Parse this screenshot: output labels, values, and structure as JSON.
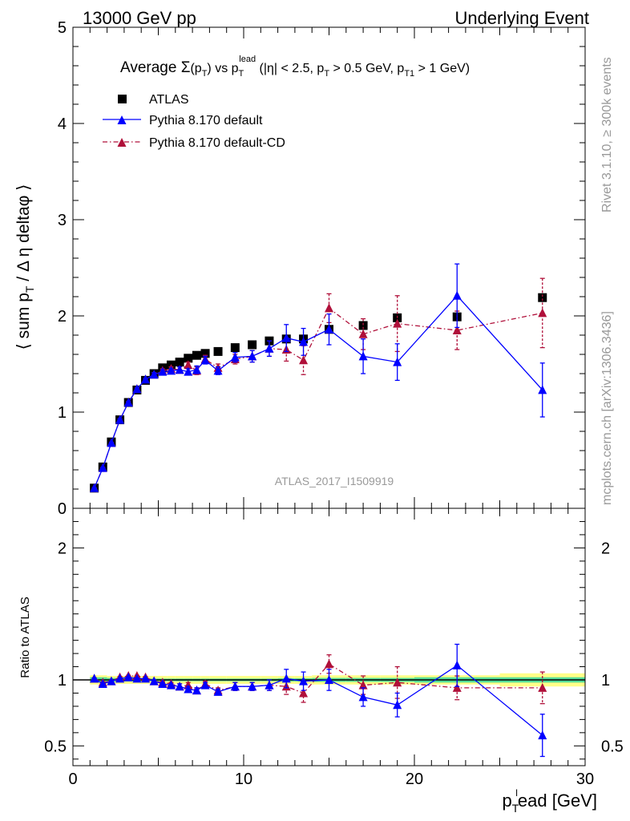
{
  "header": {
    "left": "13000 GeV pp",
    "right": "Underlying Event"
  },
  "side": {
    "rivet": "Rivet 3.1.10, ≥ 300k events",
    "mcplots": "mcplots.cern.ch [arXiv:1306.3436]"
  },
  "chart_data": [
    {
      "type": "scatter",
      "title": "Average Σ(pT) vs pT^lead (|η| < 2.5, pT > 0.5 GeV, pT1 > 1 GeV)",
      "title_parts": {
        "avg": "Average ",
        "sigma": "Σ",
        "p1": "(p",
        "t1": "T",
        "p2": ") vs p",
        "t2": "T",
        "lead": "lead",
        "p3": " (|η| < 2.5, p",
        "t3": "T",
        "p4": " > 0.5 GeV, p",
        "t4": "T1",
        "p5": " > 1 GeV)"
      },
      "ylabel": "⟨ sum pT / Δη deltaφ ⟩",
      "ylabel_parts": {
        "a": "⟨ sum p",
        "sub": "T",
        "b": " / Δ η deltaφ ⟩"
      },
      "xlim": [
        0,
        30
      ],
      "ylim": [
        0,
        5
      ],
      "yticks": [
        0,
        1,
        2,
        3,
        4,
        5
      ],
      "watermark": "ATLAS_2017_I1509919",
      "legend_position": "top-left",
      "series": [
        {
          "name": "ATLAS",
          "color": "#000000",
          "x": [
            1.25,
            1.75,
            2.25,
            2.75,
            3.25,
            3.75,
            4.25,
            4.75,
            5.25,
            5.75,
            6.25,
            6.75,
            7.25,
            7.75,
            8.5,
            9.5,
            10.5,
            11.5,
            12.5,
            13.5,
            15.0,
            17.0,
            19.0,
            22.5,
            27.5
          ],
          "y": [
            0.21,
            0.43,
            0.69,
            0.92,
            1.1,
            1.23,
            1.33,
            1.4,
            1.46,
            1.49,
            1.52,
            1.56,
            1.59,
            1.61,
            1.63,
            1.67,
            1.7,
            1.74,
            1.76,
            1.76,
            1.86,
            1.9,
            1.98,
            1.99,
            2.19
          ]
        },
        {
          "name": "Pythia 8.170 default",
          "color": "#0000ff",
          "x": [
            1.25,
            1.75,
            2.25,
            2.75,
            3.25,
            3.75,
            4.25,
            4.75,
            5.25,
            5.75,
            6.25,
            6.75,
            7.25,
            7.75,
            8.5,
            9.5,
            10.5,
            11.5,
            12.5,
            13.5,
            15.0,
            17.0,
            19.0,
            22.5,
            27.5
          ],
          "y": [
            0.21,
            0.42,
            0.68,
            0.92,
            1.1,
            1.24,
            1.34,
            1.39,
            1.42,
            1.43,
            1.44,
            1.42,
            1.44,
            1.54,
            1.43,
            1.57,
            1.58,
            1.66,
            1.77,
            1.73,
            1.86,
            1.58,
            1.52,
            2.21,
            1.23
          ],
          "err": [
            0.005,
            0.005,
            0.005,
            0.01,
            0.01,
            0.01,
            0.01,
            0.02,
            0.02,
            0.02,
            0.03,
            0.03,
            0.04,
            0.04,
            0.04,
            0.05,
            0.06,
            0.08,
            0.14,
            0.14,
            0.16,
            0.18,
            0.19,
            0.33,
            0.28
          ]
        },
        {
          "name": "Pythia 8.170 default-CD",
          "color": "#b0103a",
          "x": [
            1.25,
            1.75,
            2.25,
            2.75,
            3.25,
            3.75,
            4.25,
            4.75,
            5.25,
            5.75,
            6.25,
            6.75,
            7.25,
            7.75,
            8.5,
            9.5,
            10.5,
            11.5,
            12.5,
            13.5,
            15.0,
            17.0,
            19.0,
            22.5,
            27.5
          ],
          "y": [
            0.21,
            0.42,
            0.68,
            0.92,
            1.1,
            1.24,
            1.34,
            1.39,
            1.43,
            1.45,
            1.44,
            1.49,
            1.43,
            1.55,
            1.46,
            1.55,
            1.58,
            1.66,
            1.65,
            1.54,
            2.08,
            1.81,
            1.92,
            1.85,
            2.03
          ],
          "err": [
            0.005,
            0.005,
            0.005,
            0.01,
            0.01,
            0.01,
            0.01,
            0.02,
            0.02,
            0.02,
            0.03,
            0.03,
            0.04,
            0.04,
            0.04,
            0.05,
            0.06,
            0.08,
            0.12,
            0.15,
            0.15,
            0.16,
            0.29,
            0.2,
            0.36
          ]
        }
      ]
    },
    {
      "type": "scatter",
      "ylabel": "Ratio to ATLAS",
      "xlabel": "pT^l ead [GeV]",
      "xlabel_parts": {
        "a": "p",
        "sub": "T",
        "sup": "l",
        "b": "ead [GeV]"
      },
      "xlim": [
        0,
        30
      ],
      "xticks": [
        0,
        10,
        20,
        30
      ],
      "ylim": [
        0.35,
        2.3
      ],
      "yticks": [
        0.5,
        1,
        2
      ],
      "band": {
        "edges": [
          1,
          1.5,
          2,
          2.5,
          3,
          3.5,
          4,
          4.5,
          5,
          5.5,
          6,
          6.5,
          7,
          7.5,
          8,
          9,
          10,
          11,
          12,
          13,
          14,
          16,
          18,
          20,
          25,
          30
        ],
        "stat": [
          0.02,
          0.02,
          0.015,
          0.015,
          0.012,
          0.012,
          0.01,
          0.01,
          0.01,
          0.01,
          0.01,
          0.01,
          0.01,
          0.01,
          0.01,
          0.01,
          0.01,
          0.01,
          0.012,
          0.012,
          0.015,
          0.015,
          0.015,
          0.02,
          0.02
        ],
        "total": [
          0.035,
          0.035,
          0.03,
          0.03,
          0.03,
          0.03,
          0.03,
          0.03,
          0.03,
          0.03,
          0.03,
          0.03,
          0.03,
          0.03,
          0.03,
          0.03,
          0.03,
          0.03,
          0.03,
          0.03,
          0.035,
          0.035,
          0.035,
          0.035,
          0.05
        ],
        "stat_color": "#55dd99",
        "total_color": "#ffff88"
      },
      "series": [
        {
          "name": "Pythia 8.170 default",
          "color": "#0000ff",
          "x": [
            1.25,
            1.75,
            2.25,
            2.75,
            3.25,
            3.75,
            4.25,
            4.75,
            5.25,
            5.75,
            6.25,
            6.75,
            7.25,
            7.75,
            8.5,
            9.5,
            10.5,
            11.5,
            12.5,
            13.5,
            15.0,
            17.0,
            19.0,
            22.5,
            27.5
          ],
          "y": [
            1.01,
            0.97,
            0.99,
            1.01,
            1.02,
            1.01,
            1.01,
            0.99,
            0.97,
            0.96,
            0.95,
            0.93,
            0.92,
            0.96,
            0.91,
            0.95,
            0.95,
            0.96,
            1.01,
            0.99,
            1.0,
            0.87,
            0.81,
            1.11,
            0.58
          ],
          "err": [
            0.005,
            0.005,
            0.005,
            0.005,
            0.005,
            0.005,
            0.005,
            0.01,
            0.01,
            0.01,
            0.02,
            0.02,
            0.02,
            0.02,
            0.02,
            0.03,
            0.03,
            0.04,
            0.07,
            0.07,
            0.08,
            0.07,
            0.09,
            0.16,
            0.16
          ]
        },
        {
          "name": "Pythia 8.170 default-CD",
          "color": "#b0103a",
          "x": [
            1.25,
            1.75,
            2.25,
            2.75,
            3.25,
            3.75,
            4.25,
            4.75,
            5.25,
            5.75,
            6.25,
            6.75,
            7.25,
            7.75,
            8.5,
            9.5,
            10.5,
            11.5,
            12.5,
            13.5,
            15.0,
            17.0,
            19.0,
            22.5,
            27.5
          ],
          "y": [
            1.01,
            0.98,
            0.99,
            1.02,
            1.03,
            1.03,
            1.02,
            0.99,
            0.98,
            0.97,
            0.95,
            0.96,
            0.92,
            0.97,
            0.92,
            0.95,
            0.95,
            0.96,
            0.95,
            0.9,
            1.12,
            0.96,
            0.98,
            0.94,
            0.94
          ],
          "err": [
            0.005,
            0.005,
            0.005,
            0.005,
            0.005,
            0.005,
            0.005,
            0.01,
            0.01,
            0.01,
            0.02,
            0.02,
            0.02,
            0.02,
            0.02,
            0.03,
            0.03,
            0.04,
            0.06,
            0.07,
            0.07,
            0.07,
            0.12,
            0.09,
            0.12
          ]
        }
      ]
    }
  ]
}
